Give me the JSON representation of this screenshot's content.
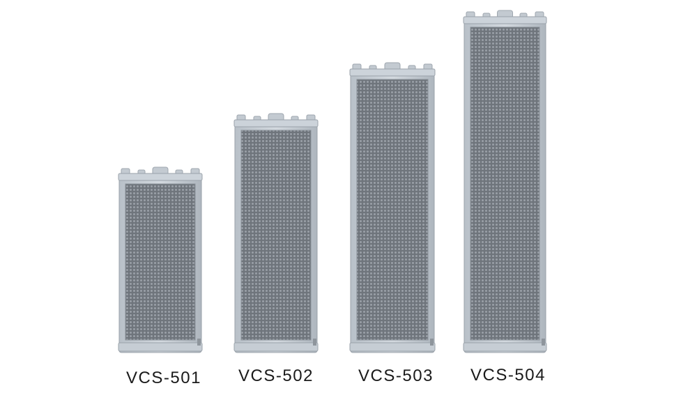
{
  "products": [
    {
      "label": "VCS-501"
    },
    {
      "label": "VCS-502"
    },
    {
      "label": "VCS-503"
    },
    {
      "label": "VCS-504"
    }
  ]
}
